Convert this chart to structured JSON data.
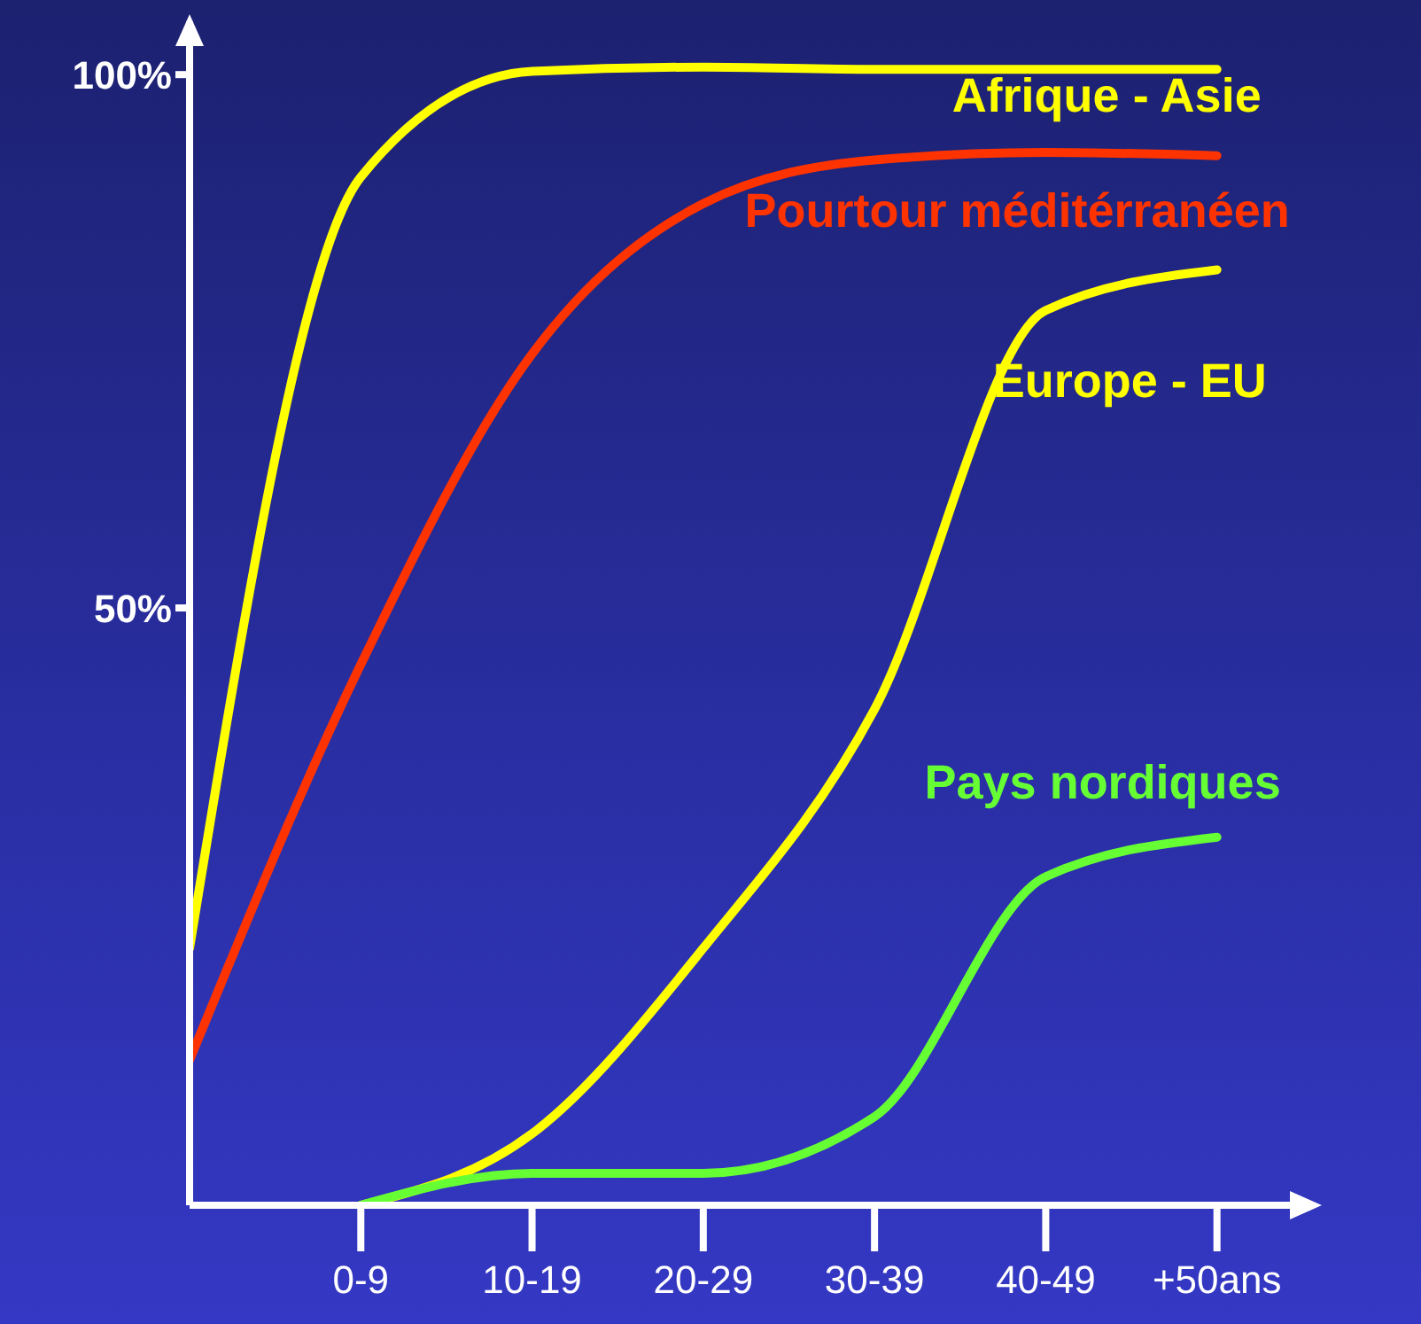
{
  "chart_data": {
    "type": "line",
    "categories": [
      null,
      "0-9",
      "10-19",
      "20-29",
      "30-39",
      "40-49",
      "+50ans"
    ],
    "ylim": [
      -6,
      105
    ],
    "yticks": [
      {
        "value": 50,
        "label": "50%"
      },
      {
        "value": 100,
        "label": "100%"
      }
    ],
    "grid": false,
    "legend": false,
    "marker": "none",
    "line_style": "solid",
    "series": [
      {
        "name": "Afrique - Asie",
        "color": "#ffff00",
        "values": [
          18.1,
          90.4,
          100.3,
          100.7,
          100.5,
          100.5,
          100.5
        ]
      },
      {
        "name": "Pourtour méditérranéen",
        "color": "#ff3300",
        "values": [
          7.6,
          44.7,
          73.8,
          87.9,
          92.0,
          92.7,
          92.4
        ]
      },
      {
        "name": "Europe - EU",
        "color": "#ffff00",
        "values": [
          null,
          -6,
          0.7,
          18.1,
          40.5,
          77.9,
          81.7
        ]
      },
      {
        "name": "Pays nordiques",
        "color": "#66ff33",
        "values": [
          null,
          -6,
          -3.0,
          -3.0,
          2.3,
          24.8,
          28.5
        ]
      }
    ]
  }
}
